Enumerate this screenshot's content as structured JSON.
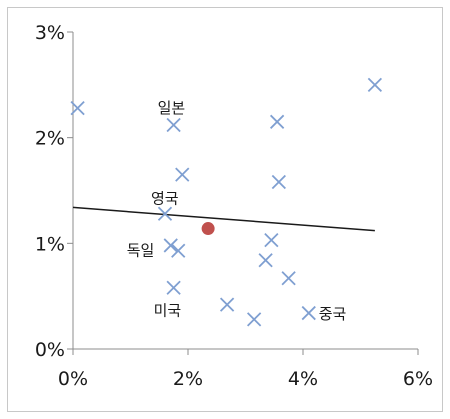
{
  "chart_data": {
    "type": "scatter",
    "title": "",
    "xlabel": "",
    "ylabel": "",
    "xlim": [
      0,
      6
    ],
    "ylim": [
      0,
      3
    ],
    "x_ticks": [
      "0%",
      "2%",
      "4%",
      "6%"
    ],
    "y_ticks": [
      "0%",
      "1%",
      "2%",
      "3%"
    ],
    "grid": false,
    "legend": "none",
    "colors": {
      "marker": "#7f9fd1",
      "highlight": "#c0504d",
      "trendline": "#1a1a1a",
      "axis": "#8c8c8c"
    },
    "points": [
      {
        "x": 0.08,
        "y": 2.28,
        "label": ""
      },
      {
        "x": 1.75,
        "y": 2.12,
        "label": "일본"
      },
      {
        "x": 3.55,
        "y": 2.15,
        "label": ""
      },
      {
        "x": 5.25,
        "y": 2.5,
        "label": ""
      },
      {
        "x": 1.9,
        "y": 1.65,
        "label": ""
      },
      {
        "x": 3.58,
        "y": 1.58,
        "label": ""
      },
      {
        "x": 1.6,
        "y": 1.28,
        "label": "영국"
      },
      {
        "x": 3.45,
        "y": 1.03,
        "label": ""
      },
      {
        "x": 1.7,
        "y": 0.98,
        "label": "독일"
      },
      {
        "x": 1.83,
        "y": 0.93,
        "label": ""
      },
      {
        "x": 3.35,
        "y": 0.84,
        "label": ""
      },
      {
        "x": 3.75,
        "y": 0.67,
        "label": ""
      },
      {
        "x": 1.75,
        "y": 0.58,
        "label": "미국"
      },
      {
        "x": 2.68,
        "y": 0.42,
        "label": ""
      },
      {
        "x": 3.15,
        "y": 0.28,
        "label": ""
      },
      {
        "x": 4.1,
        "y": 0.34,
        "label": "중국"
      }
    ],
    "highlight_point": {
      "x": 2.35,
      "y": 1.14
    },
    "trendline": {
      "x": [
        0,
        5.25
      ],
      "y": [
        1.34,
        1.12
      ]
    }
  }
}
